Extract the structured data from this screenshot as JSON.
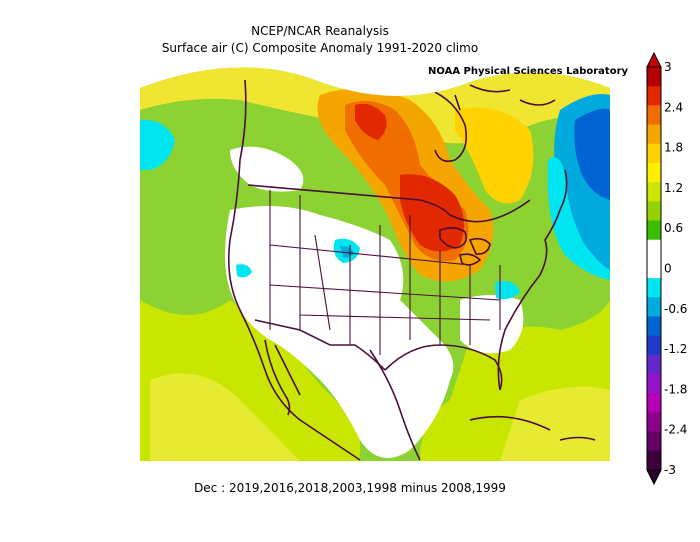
{
  "title_line1": "NCEP/NCAR Reanalysis",
  "title_line2": "Surface air (C) Composite Anomaly 1991-2020 climo",
  "lab_label": "NOAA Physical Sciences Laboratory",
  "footer": "Dec : 2019,2016,2018,2003,1998 minus 2008,1999",
  "colorbar": {
    "ticks": [
      "3",
      "2.4",
      "1.8",
      "1.2",
      "0.6",
      "0",
      "-0.6",
      "-1.2",
      "-1.8",
      "-2.4",
      "-3"
    ],
    "colors": [
      "#b40000",
      "#e12800",
      "#f06e00",
      "#f5a500",
      "#ffd200",
      "#fff000",
      "#c8e600",
      "#96d200",
      "#3cbe00",
      "#ffffff",
      "#ffffff",
      "#00e6f0",
      "#00aadc",
      "#0064d2",
      "#1e3cc8",
      "#6428c8",
      "#9614c8",
      "#b400b4",
      "#8c008c",
      "#640064",
      "#3c003c"
    ],
    "low_color": "#2d002d",
    "high_color": "#c80000"
  }
}
